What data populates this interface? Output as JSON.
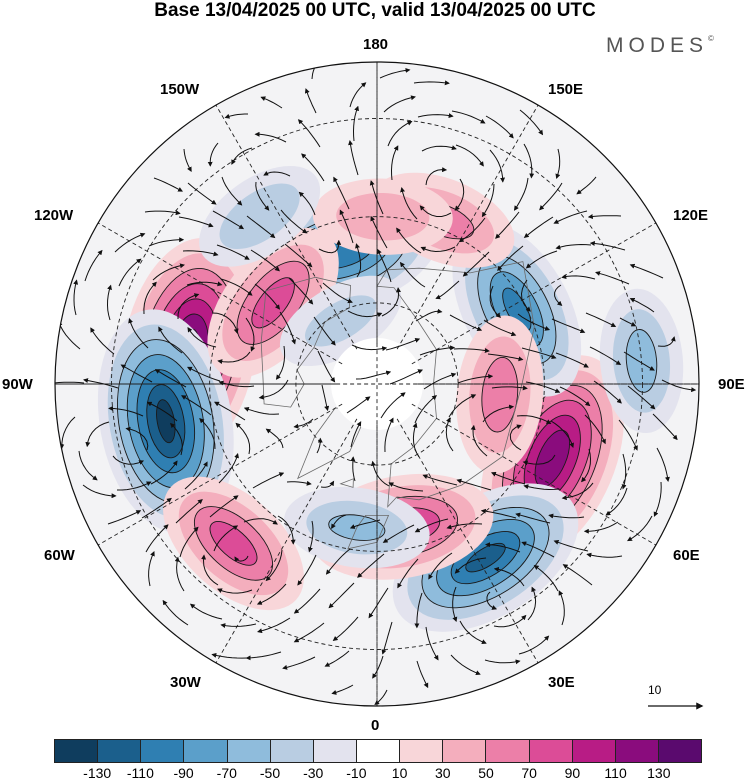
{
  "title": "Base 13/04/2025 00 UTC, valid 13/04/2025 00 UTC",
  "brand": "MODES",
  "brand_mark": "©",
  "longitude_labels": {
    "lon_180": "180",
    "lon_150e": "150E",
    "lon_120e": "120E",
    "lon_90e": "90E",
    "lon_60e": "60E",
    "lon_30e": "30E",
    "lon_0": "0",
    "lon_30w": "30W",
    "lon_60w": "60W",
    "lon_90w": "90W",
    "lon_120w": "120W",
    "lon_150w": "150W"
  },
  "vector_scale_label": "10",
  "colorbar": {
    "colors": [
      "#0f3d5e",
      "#1b5f8c",
      "#2f7fb2",
      "#5b9fca",
      "#8fbcdc",
      "#b9cde2",
      "#e3e3ee",
      "#ffffff",
      "#f8d6d9",
      "#f4aebd",
      "#ec7fa8",
      "#dc4c97",
      "#b81c85",
      "#8a0c7d",
      "#5a0a6e"
    ],
    "tick_labels": [
      "-130",
      "-110",
      "-90",
      "-70",
      "-50",
      "-30",
      "-10",
      "10",
      "30",
      "50",
      "70",
      "90",
      "110",
      "130"
    ]
  },
  "anomaly_centers": [
    {
      "lon": -100,
      "lat": 45,
      "sign": 1,
      "strength": 130
    },
    {
      "lon": -80,
      "lat": 40,
      "sign": -1,
      "strength": 130
    },
    {
      "lon": 67,
      "lat": 45,
      "sign": 1,
      "strength": 120
    },
    {
      "lon": 32,
      "lat": 42,
      "sign": -1,
      "strength": 110
    },
    {
      "lon": 118,
      "lat": 52,
      "sign": -1,
      "strength": 90
    },
    {
      "lon": -165,
      "lat": 57,
      "sign": -1,
      "strength": 100
    },
    {
      "lon": -128,
      "lat": 58,
      "sign": 1,
      "strength": 75
    },
    {
      "lon": -42,
      "lat": 40,
      "sign": 1,
      "strength": 75
    },
    {
      "lon": 10,
      "lat": 55,
      "sign": 1,
      "strength": 85
    },
    {
      "lon": -8,
      "lat": 55,
      "sign": -1,
      "strength": 50
    },
    {
      "lon": 85,
      "lat": 60,
      "sign": 1,
      "strength": 60
    },
    {
      "lon": 158,
      "lat": 48,
      "sign": 1,
      "strength": 55
    },
    {
      "lon": 178,
      "lat": 50,
      "sign": 1,
      "strength": 45
    },
    {
      "lon": 95,
      "lat": 30,
      "sign": -1,
      "strength": 55
    },
    {
      "lon": -145,
      "lat": 42,
      "sign": -1,
      "strength": 45
    },
    {
      "lon": -150,
      "lat": 72,
      "sign": -1,
      "strength": 35
    }
  ]
}
